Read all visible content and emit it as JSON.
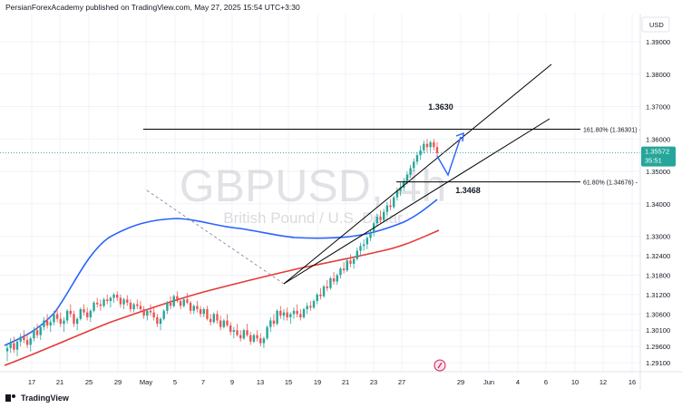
{
  "header": {
    "attribution": "PersianForexAcademy published on TradingView.com, May 27, 2025 15:54 UTC+3:30"
  },
  "footer": {
    "brand": "TradingView"
  },
  "colors": {
    "up": "#26a69a",
    "down": "#ef5350",
    "ma_fast": "#2962ff",
    "ma_slow": "#e53935",
    "channel": "#000000",
    "projection_arrow": "#2962ff",
    "price_badge": "#26a69a",
    "grid": "#f0f3fa",
    "watermark": "#9598a1"
  },
  "chart_data": {
    "type": "candlestick",
    "symbol_watermark": "GBPUSD, 4h",
    "symbol_description": "British Pound / U.S. Dollar",
    "currency": "USD",
    "ylim": [
      1.288,
      1.402
    ],
    "y_ticks": [
      "1.39000",
      "1.38000",
      "1.37000",
      "1.36000",
      "1.35000",
      "1.34000",
      "1.33000",
      "1.32400",
      "1.31800",
      "1.31200",
      "1.30600",
      "1.30100",
      "1.29600",
      "1.29100"
    ],
    "x_ticks": [
      "17",
      "21",
      "25",
      "29",
      "May",
      "5",
      "7",
      "9",
      "13",
      "15",
      "19",
      "21",
      "23",
      "27",
      "29",
      "Jun",
      "4",
      "6",
      "10",
      "12",
      "16"
    ],
    "last_price": "1.35572",
    "countdown": "35:51",
    "levels": [
      {
        "label": "161.80% (1.36301)",
        "value": 1.36301
      },
      {
        "label": "61.80% (1.34676)",
        "value": 1.34676
      }
    ],
    "annotations": [
      "1.3630",
      "1.3468"
    ],
    "candles": [
      [
        1.2945,
        1.297,
        1.2915,
        1.2955
      ],
      [
        1.2955,
        1.2985,
        1.294,
        1.297
      ],
      [
        1.297,
        1.299,
        1.294,
        1.295
      ],
      [
        1.295,
        1.298,
        1.293,
        1.2975
      ],
      [
        1.2975,
        1.3,
        1.296,
        1.299
      ],
      [
        1.299,
        1.301,
        1.297,
        1.298
      ],
      [
        1.298,
        1.3,
        1.2955,
        1.2965
      ],
      [
        1.2965,
        1.299,
        1.2945,
        1.2985
      ],
      [
        1.2985,
        1.302,
        1.2975,
        1.301
      ],
      [
        1.301,
        1.303,
        1.2985,
        1.2995
      ],
      [
        1.2995,
        1.3025,
        1.298,
        1.302
      ],
      [
        1.302,
        1.305,
        1.301,
        1.304
      ],
      [
        1.304,
        1.306,
        1.3015,
        1.3025
      ],
      [
        1.3025,
        1.3045,
        1.3005,
        1.3035
      ],
      [
        1.3035,
        1.307,
        1.3025,
        1.306
      ],
      [
        1.306,
        1.308,
        1.3035,
        1.3045
      ],
      [
        1.3045,
        1.3065,
        1.302,
        1.303
      ],
      [
        1.303,
        1.305,
        1.3005,
        1.304
      ],
      [
        1.304,
        1.3075,
        1.303,
        1.307
      ],
      [
        1.307,
        1.309,
        1.305,
        1.306
      ],
      [
        1.306,
        1.307,
        1.302,
        1.303
      ],
      [
        1.303,
        1.305,
        1.301,
        1.3045
      ],
      [
        1.3045,
        1.308,
        1.304,
        1.3075
      ],
      [
        1.3075,
        1.309,
        1.3055,
        1.3065
      ],
      [
        1.3065,
        1.308,
        1.304,
        1.305
      ],
      [
        1.305,
        1.3075,
        1.3035,
        1.307
      ],
      [
        1.307,
        1.31,
        1.3065,
        1.3095
      ],
      [
        1.3095,
        1.311,
        1.308,
        1.309
      ],
      [
        1.309,
        1.3105,
        1.307,
        1.3085
      ],
      [
        1.3085,
        1.311,
        1.308,
        1.3105
      ],
      [
        1.3105,
        1.312,
        1.309,
        1.31
      ],
      [
        1.31,
        1.3115,
        1.308,
        1.311
      ],
      [
        1.311,
        1.3125,
        1.3095,
        1.312
      ],
      [
        1.312,
        1.313,
        1.31,
        1.311
      ],
      [
        1.311,
        1.312,
        1.308,
        1.309
      ],
      [
        1.309,
        1.311,
        1.3075,
        1.3105
      ],
      [
        1.3105,
        1.3118,
        1.3085,
        1.3095
      ],
      [
        1.3095,
        1.3105,
        1.3065,
        1.3075
      ],
      [
        1.3075,
        1.3095,
        1.3065,
        1.309
      ],
      [
        1.309,
        1.3105,
        1.3075,
        1.3085
      ],
      [
        1.3085,
        1.31,
        1.3065,
        1.3075
      ],
      [
        1.3075,
        1.3085,
        1.3045,
        1.3055
      ],
      [
        1.3055,
        1.3075,
        1.304,
        1.307
      ],
      [
        1.307,
        1.309,
        1.3055,
        1.3065
      ],
      [
        1.3065,
        1.308,
        1.304,
        1.305
      ],
      [
        1.305,
        1.306,
        1.302,
        1.303
      ],
      [
        1.303,
        1.305,
        1.301,
        1.3045
      ],
      [
        1.3045,
        1.3075,
        1.304,
        1.307
      ],
      [
        1.307,
        1.31,
        1.306,
        1.3095
      ],
      [
        1.3095,
        1.3115,
        1.3075,
        1.3085
      ],
      [
        1.3085,
        1.312,
        1.308,
        1.3115
      ],
      [
        1.3115,
        1.313,
        1.3095,
        1.31
      ],
      [
        1.31,
        1.311,
        1.3075,
        1.3085
      ],
      [
        1.3085,
        1.311,
        1.308,
        1.3105
      ],
      [
        1.3105,
        1.3125,
        1.309,
        1.3095
      ],
      [
        1.3095,
        1.31,
        1.306,
        1.307
      ],
      [
        1.307,
        1.309,
        1.306,
        1.3085
      ],
      [
        1.3085,
        1.31,
        1.3065,
        1.3075
      ],
      [
        1.3075,
        1.3085,
        1.305,
        1.306
      ],
      [
        1.306,
        1.308,
        1.305,
        1.3075
      ],
      [
        1.3075,
        1.3085,
        1.304,
        1.3045
      ],
      [
        1.3045,
        1.306,
        1.3025,
        1.3035
      ],
      [
        1.3035,
        1.3065,
        1.303,
        1.306
      ],
      [
        1.306,
        1.307,
        1.303,
        1.304
      ],
      [
        1.304,
        1.3055,
        1.301,
        1.302
      ],
      [
        1.302,
        1.3045,
        1.3015,
        1.304
      ],
      [
        1.304,
        1.306,
        1.302,
        1.3025
      ],
      [
        1.3025,
        1.3035,
        1.2995,
        1.3005
      ],
      [
        1.3005,
        1.302,
        1.2985,
        1.301
      ],
      [
        1.301,
        1.303,
        1.299,
        1.2995
      ],
      [
        1.2995,
        1.301,
        1.2975,
        1.2985
      ],
      [
        1.2985,
        1.3015,
        1.298,
        1.301
      ],
      [
        1.301,
        1.303,
        1.299,
        1.2995
      ],
      [
        1.2995,
        1.3005,
        1.2965,
        1.2975
      ],
      [
        1.2975,
        1.3,
        1.297,
        1.2995
      ],
      [
        1.2995,
        1.301,
        1.2975,
        1.2985
      ],
      [
        1.2985,
        1.3,
        1.296,
        1.297
      ],
      [
        1.297,
        1.299,
        1.2955,
        1.2985
      ],
      [
        1.2985,
        1.3025,
        1.298,
        1.302
      ],
      [
        1.302,
        1.305,
        1.3005,
        1.304
      ],
      [
        1.304,
        1.306,
        1.302,
        1.303
      ],
      [
        1.303,
        1.3075,
        1.3025,
        1.307
      ],
      [
        1.307,
        1.3085,
        1.3045,
        1.3055
      ],
      [
        1.3055,
        1.3075,
        1.304,
        1.3065
      ],
      [
        1.3065,
        1.308,
        1.304,
        1.305
      ],
      [
        1.305,
        1.3065,
        1.303,
        1.306
      ],
      [
        1.306,
        1.308,
        1.3045,
        1.307
      ],
      [
        1.307,
        1.309,
        1.305,
        1.306
      ],
      [
        1.306,
        1.3075,
        1.304,
        1.305
      ],
      [
        1.305,
        1.308,
        1.3045,
        1.3075
      ],
      [
        1.3075,
        1.3095,
        1.306,
        1.3085
      ],
      [
        1.3085,
        1.31,
        1.307,
        1.308
      ],
      [
        1.308,
        1.3105,
        1.3075,
        1.31
      ],
      [
        1.31,
        1.3125,
        1.309,
        1.312
      ],
      [
        1.312,
        1.314,
        1.3105,
        1.3115
      ],
      [
        1.3115,
        1.315,
        1.311,
        1.3145
      ],
      [
        1.3145,
        1.3165,
        1.313,
        1.314
      ],
      [
        1.314,
        1.3175,
        1.3135,
        1.317
      ],
      [
        1.317,
        1.319,
        1.315,
        1.316
      ],
      [
        1.316,
        1.3185,
        1.315,
        1.318
      ],
      [
        1.318,
        1.3205,
        1.317,
        1.32
      ],
      [
        1.32,
        1.322,
        1.3185,
        1.3195
      ],
      [
        1.3195,
        1.323,
        1.319,
        1.3225
      ],
      [
        1.3225,
        1.3245,
        1.3205,
        1.3215
      ],
      [
        1.3215,
        1.3235,
        1.32,
        1.323
      ],
      [
        1.323,
        1.3265,
        1.3225,
        1.3255
      ],
      [
        1.3255,
        1.328,
        1.324,
        1.327
      ],
      [
        1.327,
        1.329,
        1.3255,
        1.3275
      ],
      [
        1.3275,
        1.33,
        1.326,
        1.3295
      ],
      [
        1.3295,
        1.332,
        1.3285,
        1.331
      ],
      [
        1.331,
        1.3345,
        1.33,
        1.334
      ],
      [
        1.334,
        1.337,
        1.333,
        1.336
      ],
      [
        1.336,
        1.338,
        1.334,
        1.335
      ],
      [
        1.335,
        1.3385,
        1.3345,
        1.3375
      ],
      [
        1.3375,
        1.3405,
        1.3365,
        1.3395
      ],
      [
        1.3395,
        1.3415,
        1.338,
        1.339
      ],
      [
        1.339,
        1.3425,
        1.3385,
        1.342
      ],
      [
        1.342,
        1.345,
        1.341,
        1.344
      ],
      [
        1.344,
        1.3465,
        1.3425,
        1.345
      ],
      [
        1.345,
        1.348,
        1.344,
        1.347
      ],
      [
        1.347,
        1.35,
        1.346,
        1.349
      ],
      [
        1.349,
        1.352,
        1.348,
        1.351
      ],
      [
        1.351,
        1.354,
        1.35,
        1.353
      ],
      [
        1.353,
        1.356,
        1.352,
        1.355
      ],
      [
        1.355,
        1.358,
        1.3535,
        1.3565
      ],
      [
        1.3565,
        1.3595,
        1.3555,
        1.3585
      ],
      [
        1.3585,
        1.36,
        1.356,
        1.3575
      ],
      [
        1.3575,
        1.3595,
        1.356,
        1.359
      ],
      [
        1.359,
        1.36,
        1.3565,
        1.3575
      ],
      [
        1.3575,
        1.359,
        1.3545,
        1.3557
      ]
    ]
  }
}
